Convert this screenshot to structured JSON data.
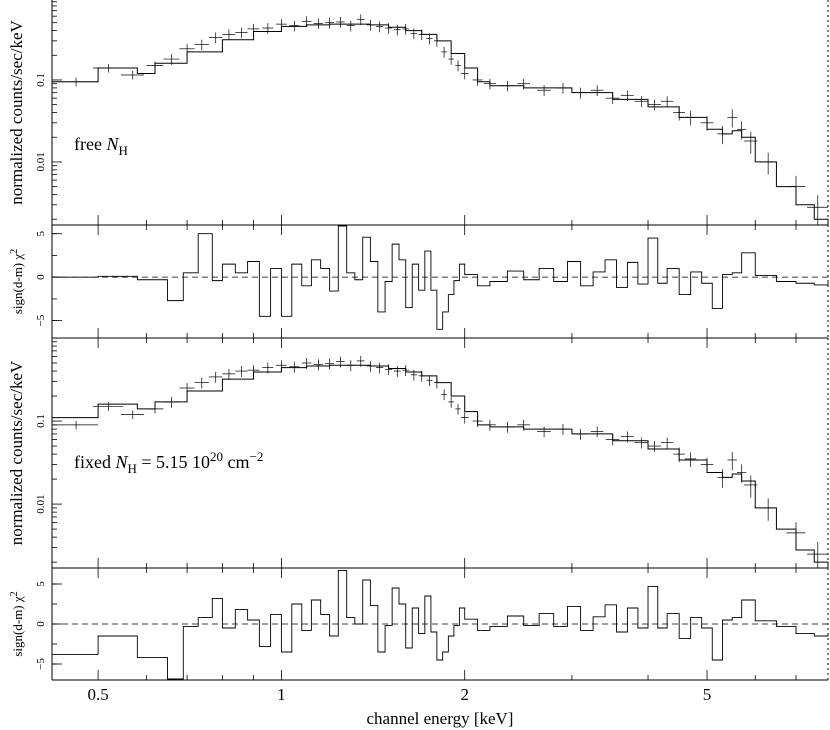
{
  "chart_data": [
    {
      "type": "line",
      "panel": "spectrum-free",
      "xscale": "log",
      "yscale": "log",
      "xlim": [
        0.42,
        7.9
      ],
      "ylim": [
        0.0017,
        1.0
      ],
      "ylabel": "normalized counts/sec/keV",
      "yticks": [
        0.1,
        0.01
      ],
      "ytick_labels": [
        "0.1",
        "0.01"
      ],
      "annotation": {
        "main": "free ",
        "n": "N",
        "sub": "H",
        "rest": ""
      },
      "model": {
        "x": [
          0.42,
          0.5,
          0.58,
          0.62,
          0.7,
          0.8,
          0.9,
          1.0,
          1.1,
          1.2,
          1.3,
          1.4,
          1.5,
          1.6,
          1.7,
          1.8,
          1.9,
          2.0,
          2.1,
          2.2,
          2.5,
          3.0,
          3.5,
          4.0,
          4.5,
          5.0,
          5.3,
          5.5,
          5.7,
          6.0,
          6.5,
          7.0,
          7.5,
          7.9
        ],
        "y": [
          0.095,
          0.14,
          0.12,
          0.16,
          0.22,
          0.31,
          0.39,
          0.45,
          0.47,
          0.48,
          0.48,
          0.47,
          0.44,
          0.4,
          0.36,
          0.3,
          0.21,
          0.14,
          0.095,
          0.085,
          0.08,
          0.07,
          0.058,
          0.047,
          0.035,
          0.025,
          0.022,
          0.024,
          0.02,
          0.01,
          0.005,
          0.003,
          0.002,
          0.0015
        ]
      },
      "data": {
        "x": [
          0.46,
          0.52,
          0.57,
          0.62,
          0.66,
          0.7,
          0.74,
          0.78,
          0.82,
          0.86,
          0.9,
          0.95,
          1.0,
          1.05,
          1.1,
          1.15,
          1.2,
          1.25,
          1.3,
          1.35,
          1.4,
          1.45,
          1.5,
          1.55,
          1.6,
          1.65,
          1.7,
          1.75,
          1.8,
          1.85,
          1.9,
          1.95,
          2.0,
          2.1,
          2.2,
          2.35,
          2.5,
          2.7,
          2.9,
          3.1,
          3.3,
          3.5,
          3.7,
          3.9,
          4.1,
          4.3,
          4.5,
          4.7,
          5.0,
          5.3,
          5.5,
          5.7,
          5.9,
          6.3,
          7.0,
          7.6
        ],
        "y": [
          0.095,
          0.14,
          0.115,
          0.15,
          0.18,
          0.24,
          0.27,
          0.33,
          0.36,
          0.38,
          0.42,
          0.43,
          0.48,
          0.46,
          0.52,
          0.49,
          0.5,
          0.51,
          0.46,
          0.55,
          0.47,
          0.45,
          0.43,
          0.41,
          0.42,
          0.37,
          0.36,
          0.32,
          0.3,
          0.22,
          0.18,
          0.15,
          0.12,
          0.1,
          0.09,
          0.085,
          0.09,
          0.075,
          0.08,
          0.07,
          0.075,
          0.06,
          0.065,
          0.055,
          0.05,
          0.055,
          0.04,
          0.035,
          0.03,
          0.022,
          0.035,
          0.025,
          0.018,
          0.01,
          0.005,
          0.0028
        ],
        "xerr": [
          0.04,
          0.03,
          0.025,
          0.02,
          0.02,
          0.02,
          0.02,
          0.02,
          0.02,
          0.02,
          0.02,
          0.02,
          0.02,
          0.02,
          0.02,
          0.02,
          0.02,
          0.02,
          0.02,
          0.02,
          0.02,
          0.02,
          0.02,
          0.02,
          0.02,
          0.02,
          0.02,
          0.02,
          0.02,
          0.02,
          0.02,
          0.02,
          0.03,
          0.04,
          0.05,
          0.06,
          0.06,
          0.07,
          0.08,
          0.08,
          0.08,
          0.09,
          0.09,
          0.1,
          0.1,
          0.1,
          0.1,
          0.1,
          0.12,
          0.1,
          0.1,
          0.1,
          0.15,
          0.2,
          0.25,
          0.3
        ],
        "yerr_frac": [
          0.12,
          0.12,
          0.12,
          0.12,
          0.15,
          0.15,
          0.15,
          0.15,
          0.15,
          0.15,
          0.15,
          0.15,
          0.15,
          0.15,
          0.15,
          0.15,
          0.15,
          0.15,
          0.15,
          0.15,
          0.15,
          0.15,
          0.15,
          0.15,
          0.15,
          0.15,
          0.15,
          0.15,
          0.15,
          0.15,
          0.15,
          0.15,
          0.15,
          0.15,
          0.15,
          0.15,
          0.15,
          0.15,
          0.15,
          0.15,
          0.15,
          0.15,
          0.15,
          0.15,
          0.15,
          0.15,
          0.2,
          0.2,
          0.2,
          0.25,
          0.25,
          0.25,
          0.3,
          0.3,
          0.35,
          0.4
        ]
      }
    },
    {
      "type": "line",
      "panel": "residuals-free",
      "xscale": "log",
      "xlim": [
        0.42,
        7.9
      ],
      "ylim": [
        -7,
        6
      ],
      "ylabel": "sign(d-m) χ",
      "ylabel_sup": "2",
      "yticks": [
        5,
        0,
        -5
      ],
      "ytick_labels": [
        "5",
        "0",
        "−5"
      ],
      "zero_line": true,
      "residuals": {
        "x": [
          0.42,
          0.5,
          0.58,
          0.65,
          0.69,
          0.73,
          0.77,
          0.8,
          0.84,
          0.88,
          0.92,
          0.96,
          1.0,
          1.04,
          1.08,
          1.12,
          1.16,
          1.2,
          1.24,
          1.28,
          1.32,
          1.36,
          1.4,
          1.44,
          1.48,
          1.52,
          1.56,
          1.6,
          1.64,
          1.68,
          1.72,
          1.76,
          1.8,
          1.84,
          1.88,
          1.92,
          1.96,
          2.0,
          2.1,
          2.2,
          2.35,
          2.5,
          2.65,
          2.8,
          2.95,
          3.1,
          3.25,
          3.4,
          3.55,
          3.7,
          3.85,
          4.0,
          4.15,
          4.3,
          4.5,
          4.7,
          4.9,
          5.1,
          5.3,
          5.5,
          5.7,
          6.0,
          6.5,
          7.0,
          7.5,
          7.9
        ],
        "y": [
          0,
          0.1,
          -0.3,
          -2.7,
          0.5,
          5,
          -0.4,
          1.5,
          0.5,
          1.8,
          -4.5,
          1,
          -4.5,
          1.5,
          -1,
          2,
          1,
          -1.6,
          6,
          0.5,
          -0.3,
          4.6,
          1.8,
          -4,
          -0.5,
          3.8,
          2,
          -3.5,
          1.5,
          -1.5,
          3,
          -1.5,
          -6,
          -4,
          -2,
          -0.4,
          1.5,
          0.3,
          -1,
          -0.5,
          0.7,
          -0.3,
          1,
          -0.5,
          1.8,
          -1,
          0.6,
          2,
          -1.2,
          1.7,
          -0.8,
          4.5,
          -0.7,
          1,
          -2,
          0.6,
          -0.7,
          -3.6,
          0.3,
          0.5,
          2.8,
          0.2,
          -0.5,
          -0.7,
          -0.9,
          -0.5
        ]
      }
    },
    {
      "type": "line",
      "panel": "spectrum-fixed",
      "xscale": "log",
      "yscale": "log",
      "xlim": [
        0.42,
        7.9
      ],
      "ylim": [
        0.0017,
        1.0
      ],
      "ylabel": "normalized counts/sec/keV",
      "yticks": [
        0.1,
        0.01
      ],
      "ytick_labels": [
        "0.1",
        "0.01"
      ],
      "annotation": {
        "main": "fixed ",
        "n": "N",
        "sub": "H",
        "rest": " = 5.15 10",
        "sup": "20",
        "rest2": " cm",
        "sup2": "−2"
      },
      "model": {
        "x": [
          0.42,
          0.5,
          0.58,
          0.62,
          0.7,
          0.8,
          0.9,
          1.0,
          1.1,
          1.2,
          1.3,
          1.4,
          1.5,
          1.6,
          1.7,
          1.8,
          1.9,
          2.0,
          2.1,
          2.2,
          2.5,
          3.0,
          3.5,
          4.0,
          4.5,
          5.0,
          5.3,
          5.5,
          5.7,
          6.0,
          6.5,
          7.0,
          7.5,
          7.9
        ],
        "y": [
          0.11,
          0.16,
          0.14,
          0.17,
          0.23,
          0.32,
          0.39,
          0.44,
          0.46,
          0.47,
          0.47,
          0.46,
          0.43,
          0.39,
          0.35,
          0.29,
          0.2,
          0.13,
          0.09,
          0.085,
          0.08,
          0.07,
          0.058,
          0.046,
          0.034,
          0.024,
          0.021,
          0.023,
          0.019,
          0.009,
          0.005,
          0.0028,
          0.002,
          0.0016
        ]
      },
      "data": {
        "x": [
          0.46,
          0.52,
          0.57,
          0.62,
          0.66,
          0.7,
          0.74,
          0.78,
          0.82,
          0.86,
          0.9,
          0.95,
          1.0,
          1.05,
          1.1,
          1.15,
          1.2,
          1.25,
          1.3,
          1.35,
          1.4,
          1.45,
          1.5,
          1.55,
          1.6,
          1.65,
          1.7,
          1.75,
          1.8,
          1.85,
          1.9,
          1.95,
          2.0,
          2.1,
          2.2,
          2.35,
          2.5,
          2.7,
          2.9,
          3.1,
          3.3,
          3.5,
          3.7,
          3.9,
          4.1,
          4.3,
          4.5,
          4.7,
          5.0,
          5.3,
          5.5,
          5.7,
          5.9,
          6.3,
          7.0,
          7.6
        ],
        "y": [
          0.09,
          0.15,
          0.12,
          0.14,
          0.17,
          0.25,
          0.29,
          0.34,
          0.37,
          0.4,
          0.41,
          0.44,
          0.47,
          0.45,
          0.5,
          0.48,
          0.49,
          0.52,
          0.47,
          0.53,
          0.46,
          0.44,
          0.42,
          0.4,
          0.41,
          0.36,
          0.35,
          0.31,
          0.29,
          0.21,
          0.17,
          0.14,
          0.11,
          0.1,
          0.09,
          0.085,
          0.09,
          0.075,
          0.08,
          0.07,
          0.075,
          0.06,
          0.065,
          0.055,
          0.05,
          0.055,
          0.04,
          0.035,
          0.03,
          0.021,
          0.034,
          0.024,
          0.017,
          0.009,
          0.0045,
          0.0025
        ],
        "xerr": [
          0.04,
          0.03,
          0.025,
          0.02,
          0.02,
          0.02,
          0.02,
          0.02,
          0.02,
          0.02,
          0.02,
          0.02,
          0.02,
          0.02,
          0.02,
          0.02,
          0.02,
          0.02,
          0.02,
          0.02,
          0.02,
          0.02,
          0.02,
          0.02,
          0.02,
          0.02,
          0.02,
          0.02,
          0.02,
          0.02,
          0.02,
          0.02,
          0.03,
          0.04,
          0.05,
          0.06,
          0.06,
          0.07,
          0.08,
          0.08,
          0.08,
          0.09,
          0.09,
          0.1,
          0.1,
          0.1,
          0.1,
          0.1,
          0.12,
          0.1,
          0.1,
          0.1,
          0.15,
          0.2,
          0.25,
          0.3
        ],
        "yerr_frac": [
          0.12,
          0.12,
          0.12,
          0.12,
          0.15,
          0.15,
          0.15,
          0.15,
          0.15,
          0.15,
          0.15,
          0.15,
          0.15,
          0.15,
          0.15,
          0.15,
          0.15,
          0.15,
          0.15,
          0.15,
          0.15,
          0.15,
          0.15,
          0.15,
          0.15,
          0.15,
          0.15,
          0.15,
          0.15,
          0.15,
          0.15,
          0.15,
          0.15,
          0.15,
          0.15,
          0.15,
          0.15,
          0.15,
          0.15,
          0.15,
          0.15,
          0.15,
          0.15,
          0.15,
          0.15,
          0.15,
          0.2,
          0.2,
          0.2,
          0.25,
          0.25,
          0.25,
          0.3,
          0.3,
          0.35,
          0.4
        ]
      }
    },
    {
      "type": "line",
      "panel": "residuals-fixed",
      "xscale": "log",
      "xlim": [
        0.42,
        7.9
      ],
      "ylim": [
        -7,
        7
      ],
      "ylabel": "sign(d-m) χ",
      "ylabel_sup": "2",
      "yticks": [
        5,
        0,
        -5
      ],
      "ytick_labels": [
        "5",
        "0",
        "−5"
      ],
      "zero_line": true,
      "xlabel": "channel energy [keV]",
      "xticks": [
        0.5,
        1,
        2,
        5
      ],
      "xtick_labels": [
        "0.5",
        "1",
        "2",
        "5"
      ],
      "residuals": {
        "x": [
          0.42,
          0.5,
          0.58,
          0.65,
          0.69,
          0.73,
          0.77,
          0.8,
          0.84,
          0.88,
          0.92,
          0.96,
          1.0,
          1.04,
          1.08,
          1.12,
          1.16,
          1.2,
          1.24,
          1.28,
          1.32,
          1.36,
          1.4,
          1.44,
          1.48,
          1.52,
          1.56,
          1.6,
          1.64,
          1.68,
          1.72,
          1.76,
          1.8,
          1.84,
          1.88,
          1.92,
          1.96,
          2.0,
          2.1,
          2.2,
          2.35,
          2.5,
          2.65,
          2.8,
          2.95,
          3.1,
          3.25,
          3.4,
          3.55,
          3.7,
          3.85,
          4.0,
          4.15,
          4.3,
          4.5,
          4.7,
          4.9,
          5.1,
          5.3,
          5.5,
          5.7,
          6.0,
          6.5,
          7.0,
          7.5,
          7.9
        ],
        "y": [
          -3.8,
          -1.5,
          -4.2,
          -7,
          -0.3,
          0.8,
          3.2,
          -0.5,
          1.8,
          0.5,
          -2.8,
          1.2,
          -3.5,
          2.5,
          -0.8,
          3,
          1.2,
          -1.5,
          6.7,
          0.8,
          0,
          5.5,
          2.3,
          -3.5,
          -0.2,
          4.5,
          2.5,
          -3,
          2,
          -1.2,
          3.5,
          -1,
          -4.5,
          -3.5,
          -1.5,
          -0.2,
          2,
          0.6,
          -0.8,
          -0.3,
          1,
          -0.2,
          1.3,
          -0.3,
          2.2,
          -0.8,
          0.9,
          2.4,
          -1,
          2,
          -0.5,
          4.7,
          -0.5,
          1.3,
          -1.8,
          0.8,
          -0.5,
          -4.5,
          0.5,
          0.8,
          3,
          0.4,
          -0.3,
          -1.2,
          -1.5,
          -1.3
        ]
      }
    }
  ]
}
